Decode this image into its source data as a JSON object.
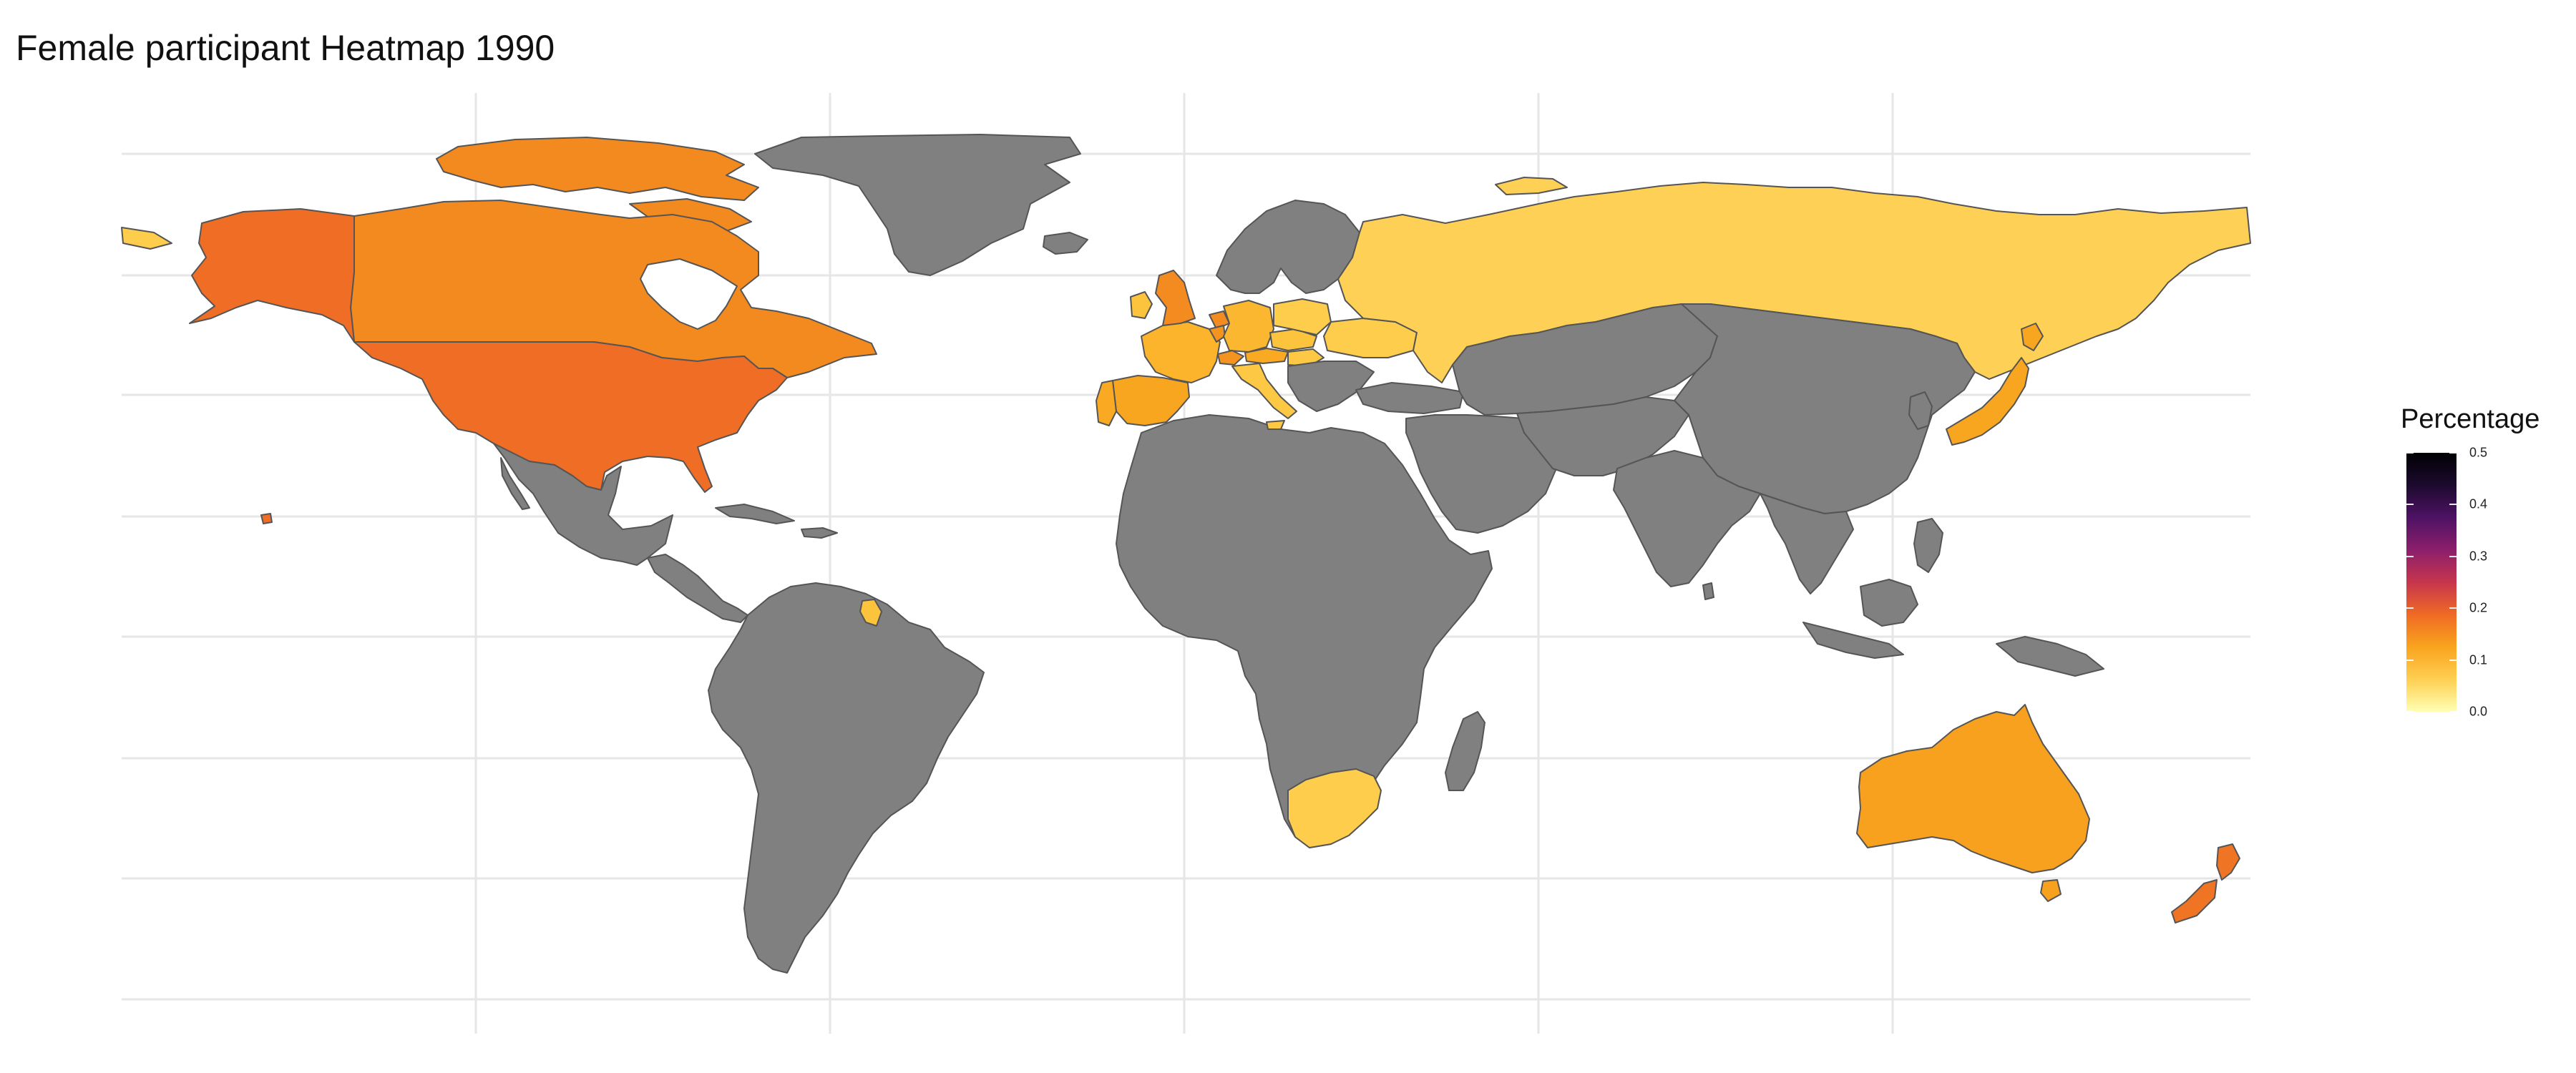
{
  "chart_data": {
    "type": "heatmap",
    "title": "Female participant Heatmap 1990",
    "legend": {
      "title": "Percentage",
      "position": "right",
      "range": [
        0.0,
        0.5
      ],
      "ticks": [
        "0.0",
        "0.1",
        "0.2",
        "0.3",
        "0.4",
        "0.5"
      ],
      "colorscale": [
        "#ffffb2",
        "#fecf52",
        "#f9a41e",
        "#ef6a25",
        "#c7354d",
        "#8c1f6b",
        "#4e1264",
        "#1c0a2e",
        "#000004"
      ]
    },
    "no_data_color": "#808080",
    "grid": true,
    "countries": [
      {
        "name": "United States",
        "value": 0.19,
        "color": "#ef6d24"
      },
      {
        "name": "Canada",
        "value": 0.16,
        "color": "#f38a20"
      },
      {
        "name": "Spain",
        "value": 0.13,
        "color": "#f8a51f"
      },
      {
        "name": "Portugal",
        "value": 0.12,
        "color": "#f9aa22"
      },
      {
        "name": "France",
        "value": 0.11,
        "color": "#fbb42c"
      },
      {
        "name": "United Kingdom",
        "value": 0.15,
        "color": "#f38b20"
      },
      {
        "name": "Ireland",
        "value": 0.1,
        "color": "#fcc33d"
      },
      {
        "name": "Belgium",
        "value": 0.14,
        "color": "#f59320"
      },
      {
        "name": "Netherlands",
        "value": 0.15,
        "color": "#f38b20"
      },
      {
        "name": "Germany",
        "value": 0.11,
        "color": "#fbb72f"
      },
      {
        "name": "Italy",
        "value": 0.09,
        "color": "#fdc944"
      },
      {
        "name": "Switzerland",
        "value": 0.14,
        "color": "#f59320"
      },
      {
        "name": "Austria",
        "value": 0.12,
        "color": "#f9aa22"
      },
      {
        "name": "Czechoslovakia",
        "value": 0.1,
        "color": "#fcc33d"
      },
      {
        "name": "Poland",
        "value": 0.08,
        "color": "#fecd4c"
      },
      {
        "name": "Ukraine",
        "value": 0.08,
        "color": "#fecd4c"
      },
      {
        "name": "Hungary",
        "value": 0.09,
        "color": "#fdc944"
      },
      {
        "name": "Russia",
        "value": 0.07,
        "color": "#fed055"
      },
      {
        "name": "Japan",
        "value": 0.13,
        "color": "#f8a51f"
      },
      {
        "name": "Australia",
        "value": 0.13,
        "color": "#f7a11f"
      },
      {
        "name": "New Zealand",
        "value": 0.18,
        "color": "#ef7423"
      },
      {
        "name": "South Africa",
        "value": 0.08,
        "color": "#fecd4c"
      },
      {
        "name": "French Guiana",
        "value": 0.1,
        "color": "#fcc33d"
      },
      {
        "name": "Hawaii",
        "value": 0.19,
        "color": "#ef6d24"
      }
    ]
  }
}
